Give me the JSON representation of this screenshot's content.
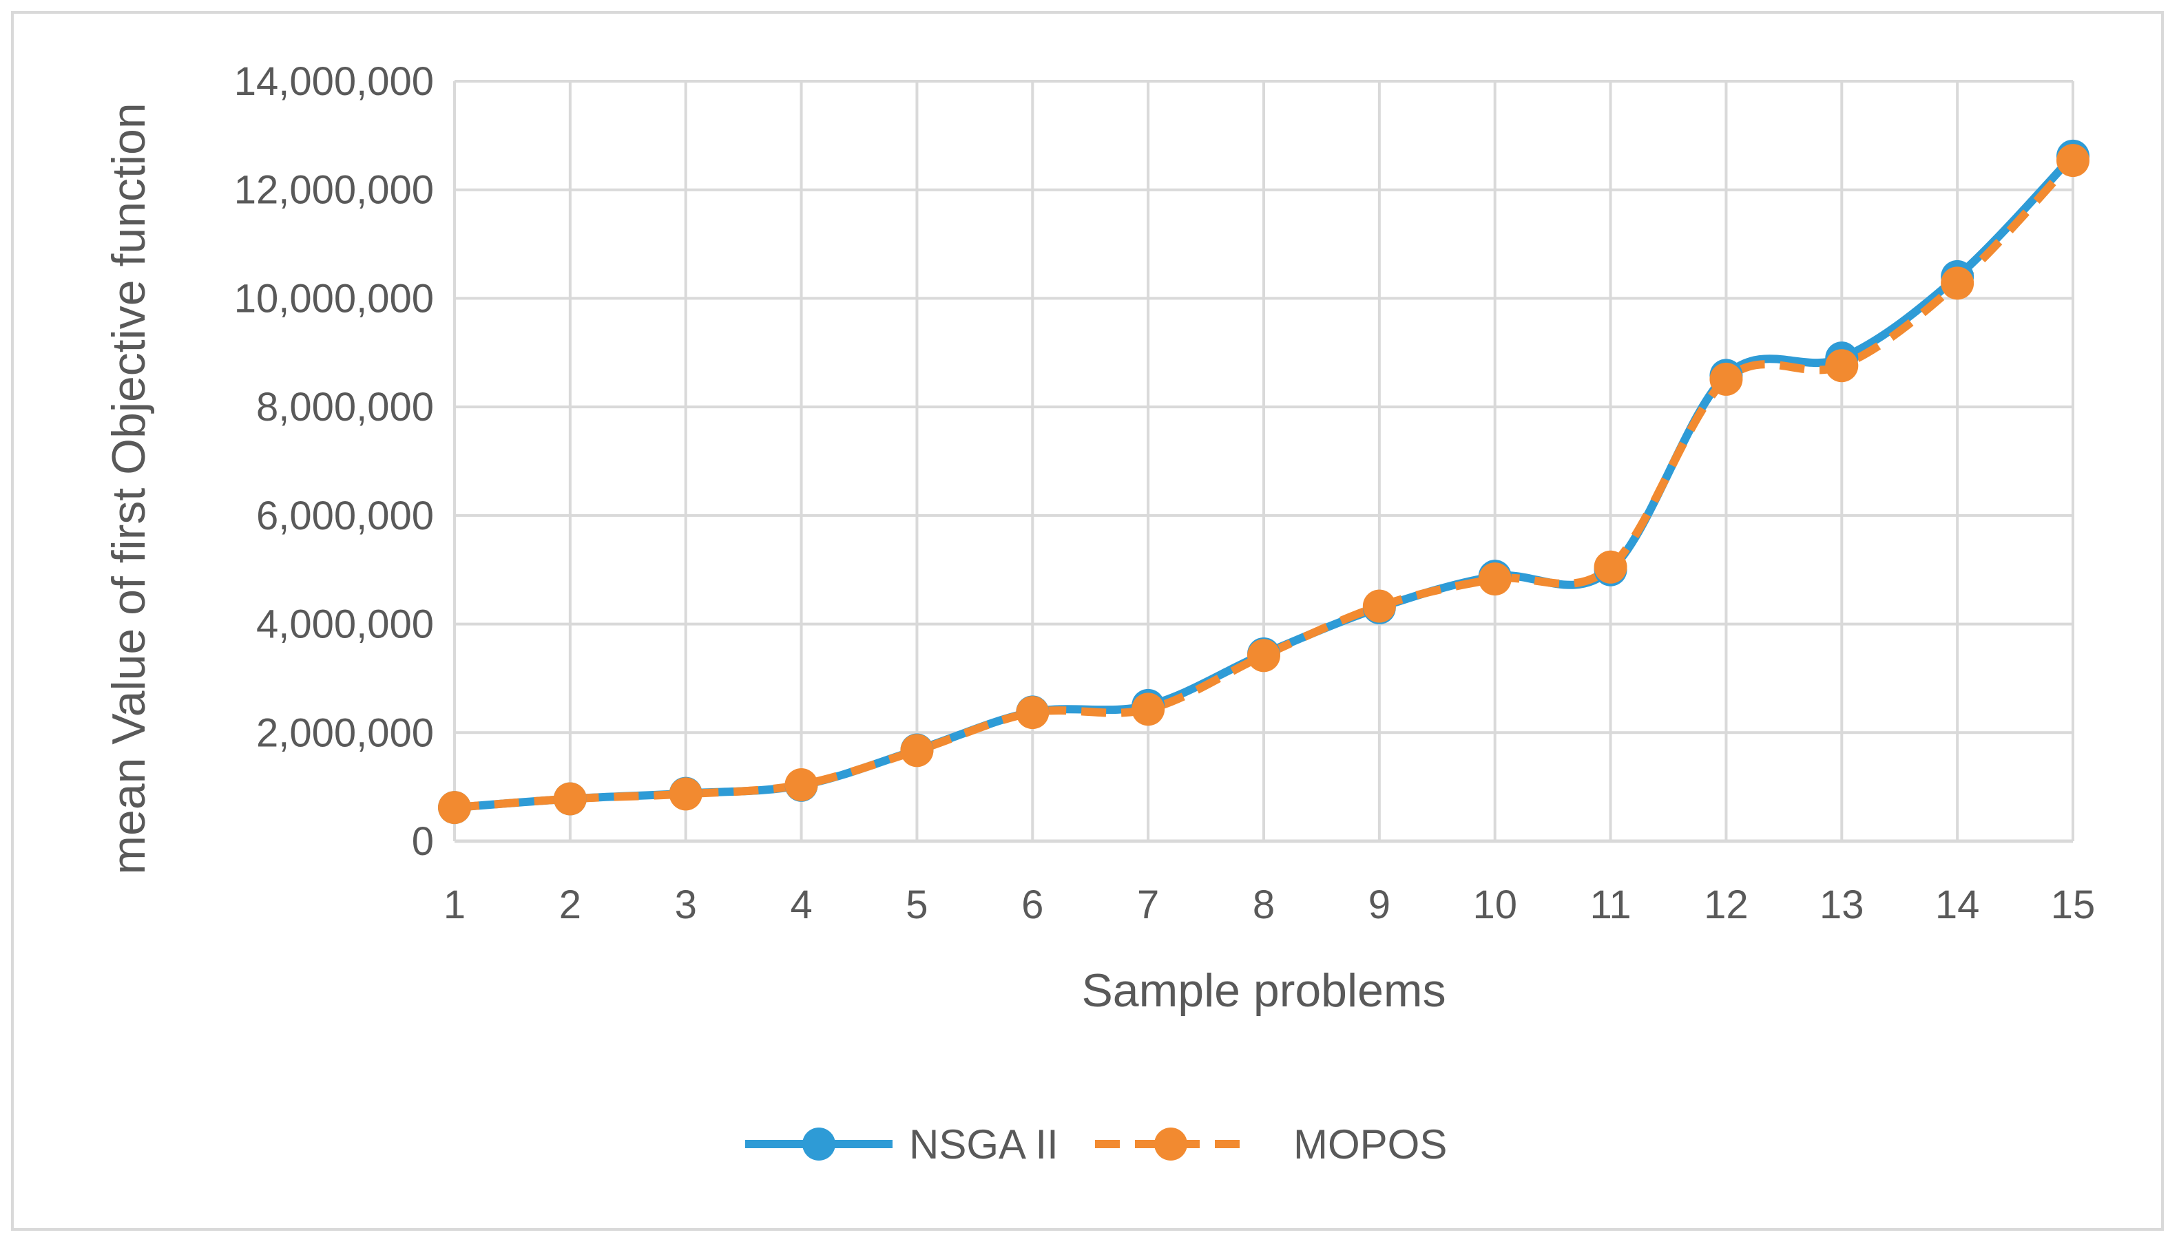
{
  "chart_data": {
    "type": "line",
    "title": "",
    "xlabel": "Sample problems",
    "ylabel": "mean Value of first Objective function",
    "categories": [
      "1",
      "2",
      "3",
      "4",
      "5",
      "6",
      "7",
      "8",
      "9",
      "10",
      "11",
      "12",
      "13",
      "14",
      "15"
    ],
    "ylim": [
      0,
      14000000
    ],
    "yticks": [
      0,
      2000000,
      4000000,
      6000000,
      8000000,
      10000000,
      12000000,
      14000000
    ],
    "ytick_labels": [
      "0",
      "2,000,000",
      "4,000,000",
      "6,000,000",
      "8,000,000",
      "10,000,000",
      "12,000,000",
      "14,000,000"
    ],
    "grid": true,
    "smooth": true,
    "legend_position": "bottom",
    "series": [
      {
        "name": "NSGA II",
        "color": "#2e9bd6",
        "line_style": "solid",
        "values": [
          620000,
          780000,
          880000,
          1030000,
          1680000,
          2380000,
          2500000,
          3450000,
          4300000,
          4880000,
          5000000,
          8580000,
          8900000,
          10400000,
          12620000
        ]
      },
      {
        "name": "MOPOS",
        "color": "#f28a30",
        "line_style": "dashed",
        "values": [
          620000,
          780000,
          870000,
          1040000,
          1670000,
          2370000,
          2430000,
          3420000,
          4330000,
          4830000,
          5050000,
          8510000,
          8760000,
          10280000,
          12540000
        ]
      }
    ]
  }
}
